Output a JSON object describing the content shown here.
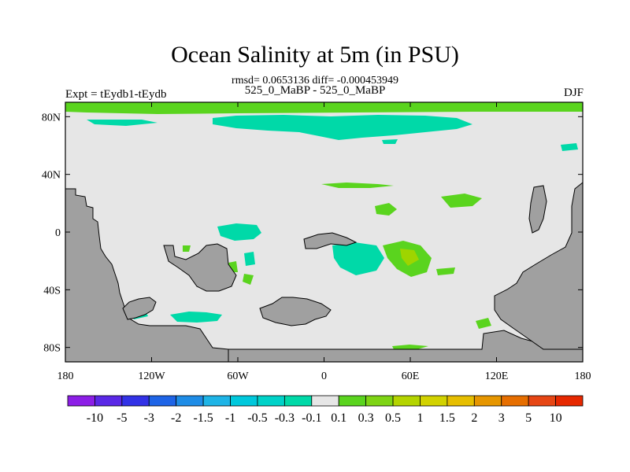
{
  "title": "Ocean Salinity at 5m (in PSU)",
  "subtitle": "rmsd= 0.0653136 diff= -0.000453949",
  "left_string": "Expt = tEydb1-tEydb",
  "center_string": "525_0_MaBP - 525_0_MaBP",
  "right_string": "DJF",
  "colors": {
    "land": "#a0a0a0",
    "ocean_neutral": "#e6e6e6",
    "anomaly_neg_small": "#00d9a8",
    "anomaly_neg_mid": "#00c8c8",
    "anomaly_pos_small": "#5ad41e",
    "anomaly_pos_mid": "#9ed500"
  },
  "map": {
    "projection": "cylindrical-equidistant",
    "lat_ticks": [
      {
        "value": 80,
        "label": "80N"
      },
      {
        "value": 40,
        "label": "40N"
      },
      {
        "value": 0,
        "label": "0"
      },
      {
        "value": -40,
        "label": "40S"
      },
      {
        "value": -80,
        "label": "80S"
      }
    ],
    "lon_ticks": [
      {
        "value": -180,
        "label": "180"
      },
      {
        "value": -120,
        "label": "120W"
      },
      {
        "value": -60,
        "label": "60W"
      },
      {
        "value": 0,
        "label": "0"
      },
      {
        "value": 60,
        "label": "60E"
      },
      {
        "value": 120,
        "label": "120E"
      },
      {
        "value": 180,
        "label": "180"
      }
    ]
  },
  "colorbar": {
    "labels": [
      "-10",
      "-5",
      "-3",
      "-2",
      "-1.5",
      "-1",
      "-0.5",
      "-0.3",
      "-0.1",
      "0.1",
      "0.3",
      "0.5",
      "1",
      "1.5",
      "2",
      "3",
      "5",
      "10"
    ],
    "colors": [
      "#8c1ee6",
      "#5a28e6",
      "#3232e6",
      "#1e64e6",
      "#1e8ce6",
      "#1eb4e6",
      "#00c8dc",
      "#00d2c8",
      "#00d9a8",
      "#e6e6e6",
      "#5ad41e",
      "#7ed414",
      "#b4d400",
      "#d2d200",
      "#e6be00",
      "#e69600",
      "#e66e00",
      "#e64614",
      "#e62800"
    ]
  }
}
